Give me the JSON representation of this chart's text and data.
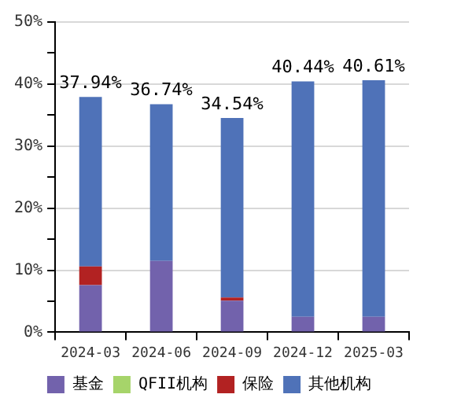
{
  "chart_data": {
    "type": "bar",
    "stacked": true,
    "categories": [
      "2024-03",
      "2024-06",
      "2024-09",
      "2024-12",
      "2025-03"
    ],
    "series": [
      {
        "name": "基金",
        "color": "#7262ac",
        "values": [
          7.6,
          11.5,
          5.1,
          2.5,
          2.5
        ]
      },
      {
        "name": "QFII机构",
        "color": "#a6d46a",
        "values": [
          0,
          0,
          0,
          0,
          0
        ]
      },
      {
        "name": "保险",
        "color": "#b22222",
        "values": [
          3.0,
          0,
          0.5,
          0,
          0
        ]
      },
      {
        "name": "其他机构",
        "color": "#4f72b8",
        "values": [
          27.34,
          25.24,
          28.94,
          37.94,
          38.11
        ]
      }
    ],
    "totals": [
      "37.94%",
      "36.74%",
      "34.54%",
      "40.44%",
      "40.61%"
    ],
    "ylim": [
      0,
      50
    ],
    "yticks": [
      {
        "value": 0,
        "label": "0%"
      },
      {
        "value": 5,
        "label": null
      },
      {
        "value": 10,
        "label": "10%"
      },
      {
        "value": 15,
        "label": null
      },
      {
        "value": 20,
        "label": "20%"
      },
      {
        "value": 25,
        "label": null
      },
      {
        "value": 30,
        "label": "30%"
      },
      {
        "value": 35,
        "label": null
      },
      {
        "value": 40,
        "label": "40%"
      },
      {
        "value": 45,
        "label": null
      },
      {
        "value": 50,
        "label": "50%"
      }
    ],
    "grid": "y",
    "legend": "bottom"
  }
}
